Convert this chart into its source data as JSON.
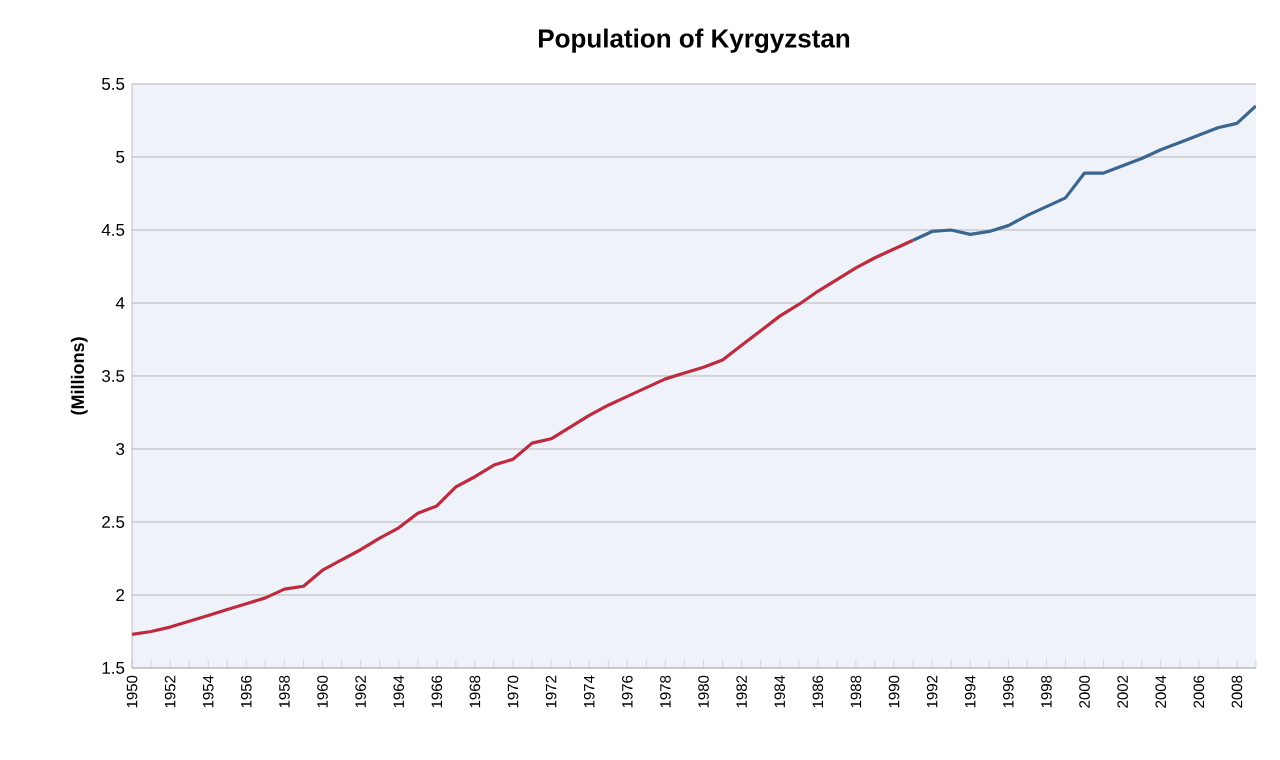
{
  "chart_data": {
    "type": "line",
    "title": "Population of Kyrgyzstan",
    "ylabel": "(Millions)",
    "categories": [
      "1950",
      null,
      "1952",
      null,
      "1954",
      null,
      "1956",
      null,
      "1958",
      null,
      "1960",
      null,
      "1962",
      null,
      "1964",
      null,
      "1966",
      null,
      "1968",
      null,
      "1970",
      null,
      "1972",
      null,
      "1974",
      null,
      "1976",
      null,
      "1978",
      null,
      "1980",
      null,
      "1982",
      null,
      "1984",
      null,
      "1986",
      null,
      "1988",
      null,
      "1990",
      null,
      "1992",
      null,
      "1994",
      null,
      "1996",
      null,
      "1998",
      null,
      "2000",
      null,
      "2002",
      null,
      "2004",
      null,
      "2006",
      null,
      "2008",
      null
    ],
    "series": [
      {
        "color": "#be2a3e",
        "values": [
          1.73,
          1.75,
          1.78,
          1.82,
          1.86,
          1.9,
          1.94,
          1.98,
          2.04,
          2.06,
          2.17,
          2.24,
          2.31,
          2.39,
          2.46,
          2.56,
          2.61,
          2.74,
          2.81,
          2.89,
          2.93,
          3.04,
          3.07,
          3.15,
          3.23,
          3.3,
          3.36,
          3.42,
          3.48,
          3.52,
          3.56,
          3.61,
          3.71,
          3.81,
          3.91,
          3.99,
          4.08,
          4.16,
          4.24,
          4.31,
          4.37,
          4.43,
          null,
          null,
          null,
          null,
          null,
          null,
          null,
          null,
          null,
          null,
          null,
          null,
          null,
          null,
          null,
          null,
          null,
          null
        ]
      },
      {
        "color": "#3a6690",
        "values": [
          null,
          null,
          null,
          null,
          null,
          null,
          null,
          null,
          null,
          null,
          null,
          null,
          null,
          null,
          null,
          null,
          null,
          null,
          null,
          null,
          null,
          null,
          null,
          null,
          null,
          null,
          null,
          null,
          null,
          null,
          null,
          null,
          null,
          null,
          null,
          null,
          null,
          null,
          null,
          null,
          null,
          4.43,
          4.49,
          4.5,
          4.47,
          4.49,
          4.53,
          4.6,
          4.66,
          4.72,
          4.89,
          4.89,
          4.94,
          4.99,
          5.05,
          5.1,
          5.15,
          5.2,
          5.23,
          5.35
        ]
      }
    ],
    "ylim": [
      1.5,
      5.5
    ],
    "yticks": [
      1.5,
      2,
      2.5,
      3,
      3.5,
      4,
      4.5,
      5,
      5.5
    ],
    "grid": "y",
    "marker": "none",
    "line_style": "solid"
  }
}
